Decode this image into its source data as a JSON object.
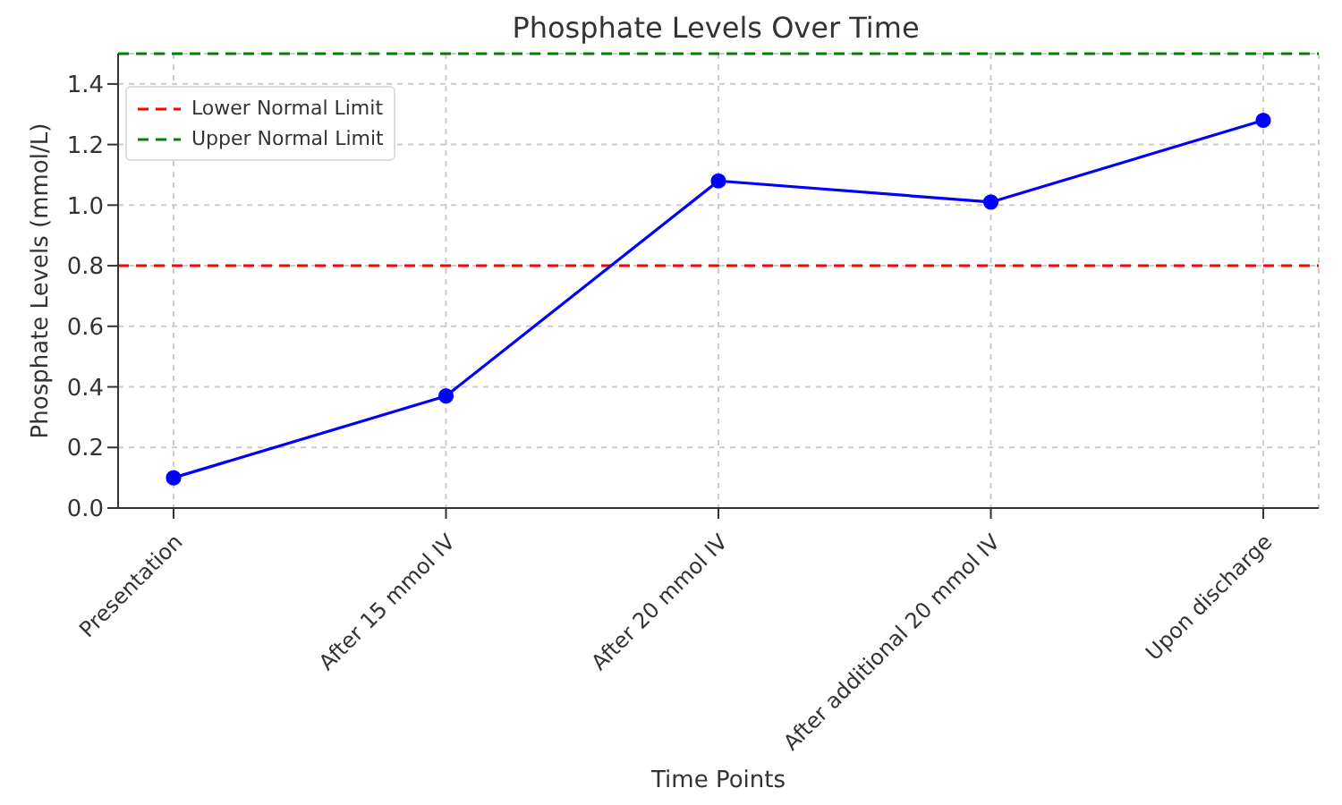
{
  "chart_data": {
    "type": "line",
    "title": "Phosphate Levels Over Time",
    "xlabel": "Time Points",
    "ylabel": "Phosphate Levels (mmol/L)",
    "categories": [
      "Presentation",
      "After 15 mmol IV",
      "After 20 mmol IV",
      "After additional 20 mmol IV",
      "Upon discharge"
    ],
    "series": [
      {
        "color": "#0000ff",
        "values": [
          0.1,
          0.37,
          1.08,
          1.01,
          1.28
        ]
      }
    ],
    "ylim": [
      0,
      1.5
    ],
    "yticks": [
      {
        "value": 0,
        "label": "0.0"
      },
      {
        "value": 0.2,
        "label": "0.2"
      },
      {
        "value": 0.4,
        "label": "0.4"
      },
      {
        "value": 0.6,
        "label": "0.6"
      },
      {
        "value": 0.8,
        "label": "0.8"
      },
      {
        "value": 1.0,
        "label": "1.0"
      },
      {
        "value": 1.2,
        "label": "1.2"
      },
      {
        "value": 1.4,
        "label": "1.4"
      }
    ],
    "ref_lines": [
      {
        "axis": "y",
        "value": 0.8,
        "label": "Lower Normal Limit",
        "color": "#ff0000",
        "line_style": "dashed"
      },
      {
        "axis": "y",
        "value": 1.5,
        "label": "Upper Normal Limit",
        "color": "#008000",
        "line_style": "dashed"
      }
    ],
    "grid": true,
    "legend": "top left",
    "marker": "circle",
    "line_style": "solid"
  }
}
